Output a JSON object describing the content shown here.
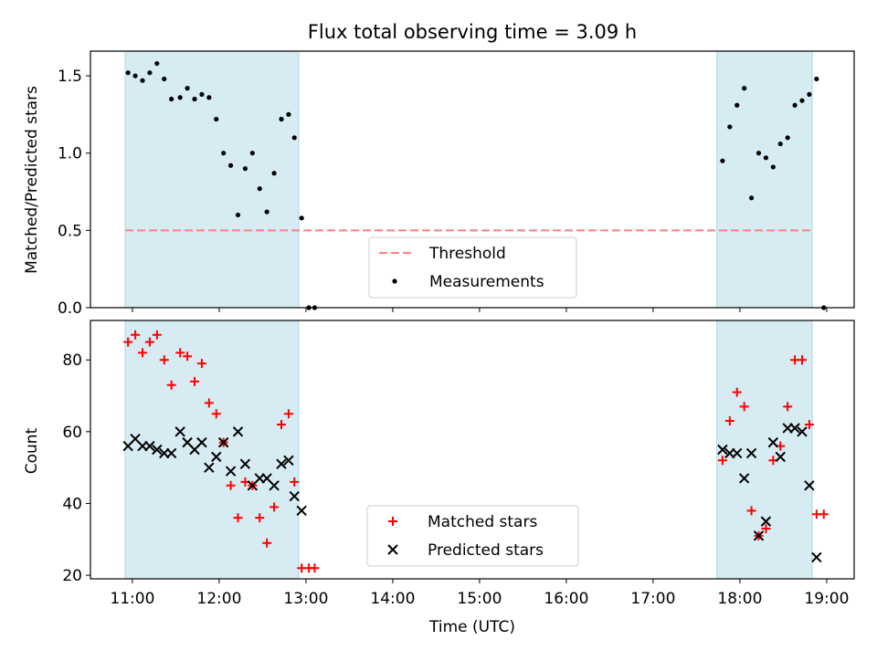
{
  "title": "Flux total observing time = 3.09 h",
  "xlabel": "Time (UTC)",
  "x_ticks": [
    "11:00",
    "12:00",
    "13:00",
    "14:00",
    "15:00",
    "16:00",
    "17:00",
    "18:00",
    "19:00"
  ],
  "colors": {
    "shade": "#add8e6",
    "threshold": "#ff8080",
    "matched": "#ff0000",
    "predicted": "#000000",
    "measurement": "#000000"
  },
  "chart_data": [
    {
      "type": "scatter",
      "ylabel": "Matched/Predicted stars",
      "xlim": [
        "10:31",
        "19:19"
      ],
      "ylim": [
        0,
        1.66
      ],
      "y_ticks": [
        "0.0",
        "0.5",
        "1.0",
        "1.5"
      ],
      "shaded_intervals": [
        [
          "10:55",
          "12:55"
        ],
        [
          "17:44",
          "18:50"
        ]
      ],
      "threshold": 0.5,
      "threshold_range": [
        "10:55",
        "18:50"
      ],
      "legend_position": "lower-center",
      "legend": [
        {
          "label": "Threshold",
          "kind": "dash"
        },
        {
          "label": "Measurements",
          "kind": "dot"
        }
      ],
      "series": [
        {
          "name": "Measurements",
          "points": [
            [
              "10:57",
              1.52
            ],
            [
              "11:02",
              1.5
            ],
            [
              "11:07",
              1.47
            ],
            [
              "11:12",
              1.52
            ],
            [
              "11:17",
              1.58
            ],
            [
              "11:22",
              1.48
            ],
            [
              "11:27",
              1.35
            ],
            [
              "11:33",
              1.36
            ],
            [
              "11:38",
              1.42
            ],
            [
              "11:43",
              1.35
            ],
            [
              "11:48",
              1.38
            ],
            [
              "11:53",
              1.36
            ],
            [
              "11:58",
              1.22
            ],
            [
              "12:03",
              1.0
            ],
            [
              "12:08",
              0.92
            ],
            [
              "12:13",
              0.6
            ],
            [
              "12:18",
              0.9
            ],
            [
              "12:23",
              1.0
            ],
            [
              "12:28",
              0.77
            ],
            [
              "12:33",
              0.62
            ],
            [
              "12:38",
              0.87
            ],
            [
              "12:43",
              1.22
            ],
            [
              "12:48",
              1.25
            ],
            [
              "12:52",
              1.1
            ],
            [
              "12:57",
              0.58
            ],
            [
              "13:02",
              0.0
            ],
            [
              "13:06",
              0.0
            ],
            [
              "17:48",
              0.95
            ],
            [
              "17:53",
              1.17
            ],
            [
              "17:58",
              1.31
            ],
            [
              "18:03",
              1.42
            ],
            [
              "18:08",
              0.71
            ],
            [
              "18:13",
              1.0
            ],
            [
              "18:18",
              0.97
            ],
            [
              "18:23",
              0.91
            ],
            [
              "18:28",
              1.06
            ],
            [
              "18:33",
              1.1
            ],
            [
              "18:38",
              1.31
            ],
            [
              "18:43",
              1.34
            ],
            [
              "18:48",
              1.38
            ],
            [
              "18:53",
              1.48
            ],
            [
              "18:58",
              0.0
            ]
          ]
        }
      ]
    },
    {
      "type": "scatter",
      "ylabel": "Count",
      "xlim": [
        "10:31",
        "19:19"
      ],
      "ylim": [
        19,
        91
      ],
      "y_ticks": [
        "20",
        "40",
        "60",
        "80"
      ],
      "shaded_intervals": [
        [
          "10:55",
          "12:55"
        ],
        [
          "17:44",
          "18:50"
        ]
      ],
      "legend_position": "lower-center",
      "legend": [
        {
          "label": "Matched stars",
          "kind": "plus"
        },
        {
          "label": "Predicted stars",
          "kind": "x"
        }
      ],
      "series": [
        {
          "name": "Matched stars",
          "marker": "plus",
          "points": [
            [
              "10:57",
              85
            ],
            [
              "11:02",
              87
            ],
            [
              "11:07",
              82
            ],
            [
              "11:12",
              85
            ],
            [
              "11:17",
              87
            ],
            [
              "11:22",
              80
            ],
            [
              "11:27",
              73
            ],
            [
              "11:33",
              82
            ],
            [
              "11:38",
              81
            ],
            [
              "11:43",
              74
            ],
            [
              "11:48",
              79
            ],
            [
              "11:53",
              68
            ],
            [
              "11:58",
              65
            ],
            [
              "12:03",
              57
            ],
            [
              "12:08",
              45
            ],
            [
              "12:13",
              36
            ],
            [
              "12:18",
              46
            ],
            [
              "12:23",
              45
            ],
            [
              "12:28",
              36
            ],
            [
              "12:33",
              29
            ],
            [
              "12:38",
              39
            ],
            [
              "12:43",
              62
            ],
            [
              "12:48",
              65
            ],
            [
              "12:52",
              46
            ],
            [
              "12:57",
              22
            ],
            [
              "13:02",
              22
            ],
            [
              "13:06",
              22
            ],
            [
              "17:48",
              52
            ],
            [
              "17:53",
              63
            ],
            [
              "17:58",
              71
            ],
            [
              "18:03",
              67
            ],
            [
              "18:08",
              38
            ],
            [
              "18:13",
              31
            ],
            [
              "18:18",
              33
            ],
            [
              "18:23",
              52
            ],
            [
              "18:28",
              56
            ],
            [
              "18:33",
              67
            ],
            [
              "18:38",
              80
            ],
            [
              "18:43",
              80
            ],
            [
              "18:48",
              62
            ],
            [
              "18:53",
              37
            ],
            [
              "18:58",
              37
            ]
          ]
        },
        {
          "name": "Predicted stars",
          "marker": "x",
          "points": [
            [
              "10:57",
              56
            ],
            [
              "11:02",
              58
            ],
            [
              "11:07",
              56
            ],
            [
              "11:12",
              56
            ],
            [
              "11:17",
              55
            ],
            [
              "11:22",
              54
            ],
            [
              "11:27",
              54
            ],
            [
              "11:33",
              60
            ],
            [
              "11:38",
              57
            ],
            [
              "11:43",
              55
            ],
            [
              "11:48",
              57
            ],
            [
              "11:53",
              50
            ],
            [
              "11:58",
              53
            ],
            [
              "12:03",
              57
            ],
            [
              "12:08",
              49
            ],
            [
              "12:13",
              60
            ],
            [
              "12:18",
              51
            ],
            [
              "12:23",
              45
            ],
            [
              "12:28",
              47
            ],
            [
              "12:33",
              47
            ],
            [
              "12:38",
              45
            ],
            [
              "12:43",
              51
            ],
            [
              "12:48",
              52
            ],
            [
              "12:52",
              42
            ],
            [
              "12:57",
              38
            ],
            [
              "17:48",
              55
            ],
            [
              "17:53",
              54
            ],
            [
              "17:58",
              54
            ],
            [
              "18:03",
              47
            ],
            [
              "18:08",
              54
            ],
            [
              "18:13",
              31
            ],
            [
              "18:18",
              35
            ],
            [
              "18:23",
              57
            ],
            [
              "18:28",
              53
            ],
            [
              "18:33",
              61
            ],
            [
              "18:38",
              61
            ],
            [
              "18:43",
              60
            ],
            [
              "18:48",
              45
            ],
            [
              "18:53",
              25
            ]
          ]
        }
      ]
    }
  ]
}
